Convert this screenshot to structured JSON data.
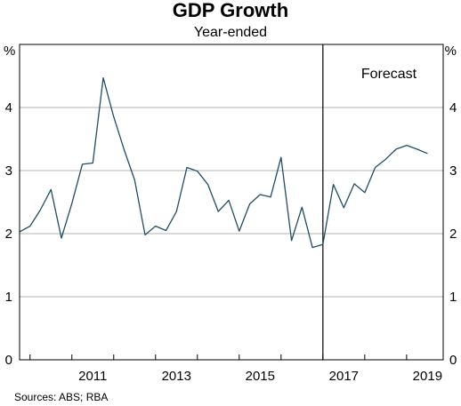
{
  "chart_data": {
    "type": "line",
    "title": "GDP Growth",
    "subtitle": "Year-ended",
    "y_unit_left": "%",
    "y_unit_right": "%",
    "ylim": [
      0,
      5
    ],
    "yticks": [
      0,
      1,
      2,
      3,
      4
    ],
    "xlim": [
      2009.75,
      2019.875
    ],
    "xtick_labels": [
      {
        "x": 2011,
        "label": "2011"
      },
      {
        "x": 2013,
        "label": "2013"
      },
      {
        "x": 2015,
        "label": "2015"
      },
      {
        "x": 2017,
        "label": "2017"
      },
      {
        "x": 2019,
        "label": "2019"
      }
    ],
    "grid": true,
    "forecast_start": 2017.0,
    "annotation": "Forecast",
    "series": [
      {
        "color": "#1f4e66",
        "points": [
          [
            2009.75,
            2.03
          ],
          [
            2010.0,
            2.12
          ],
          [
            2010.25,
            2.38
          ],
          [
            2010.5,
            2.7
          ],
          [
            2010.75,
            1.93
          ],
          [
            2011.0,
            2.48
          ],
          [
            2011.25,
            3.1
          ],
          [
            2011.5,
            3.12
          ],
          [
            2011.75,
            4.47
          ],
          [
            2012.0,
            3.85
          ],
          [
            2012.25,
            3.33
          ],
          [
            2012.5,
            2.85
          ],
          [
            2012.75,
            1.98
          ],
          [
            2013.0,
            2.12
          ],
          [
            2013.25,
            2.05
          ],
          [
            2013.5,
            2.35
          ],
          [
            2013.75,
            3.05
          ],
          [
            2014.0,
            2.99
          ],
          [
            2014.25,
            2.78
          ],
          [
            2014.5,
            2.35
          ],
          [
            2014.75,
            2.53
          ],
          [
            2015.0,
            2.04
          ],
          [
            2015.25,
            2.47
          ],
          [
            2015.5,
            2.62
          ],
          [
            2015.75,
            2.58
          ],
          [
            2016.0,
            3.21
          ],
          [
            2016.25,
            1.89
          ],
          [
            2016.5,
            2.42
          ],
          [
            2016.75,
            1.78
          ],
          [
            2017.0,
            1.83
          ],
          [
            2017.25,
            2.78
          ],
          [
            2017.5,
            2.41
          ],
          [
            2017.75,
            2.79
          ],
          [
            2018.0,
            2.65
          ],
          [
            2018.25,
            3.05
          ],
          [
            2018.5,
            3.18
          ],
          [
            2018.75,
            3.34
          ],
          [
            2019.0,
            3.4
          ],
          [
            2019.25,
            3.34
          ],
          [
            2019.5,
            3.27
          ]
        ]
      }
    ]
  },
  "footer": {
    "sources": "Sources:   ABS; RBA"
  }
}
